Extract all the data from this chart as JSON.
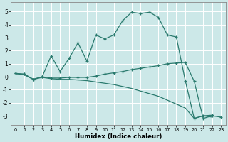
{
  "xlabel": "Humidex (Indice chaleur)",
  "background_color": "#cce8e8",
  "grid_color": "#ffffff",
  "line_color": "#2a7a6e",
  "xlim": [
    -0.5,
    23.5
  ],
  "ylim": [
    -3.7,
    5.7
  ],
  "yticks": [
    -3,
    -2,
    -1,
    0,
    1,
    2,
    3,
    4,
    5
  ],
  "xticks": [
    0,
    1,
    2,
    3,
    4,
    5,
    6,
    7,
    8,
    9,
    10,
    11,
    12,
    13,
    14,
    15,
    16,
    17,
    18,
    19,
    20,
    21,
    22,
    23
  ],
  "line2_x": [
    0,
    1,
    2,
    3,
    4,
    5,
    6,
    7,
    8,
    9,
    10,
    11,
    12,
    13,
    14,
    15,
    16,
    17,
    18,
    19,
    20,
    21,
    22
  ],
  "line2_y": [
    0.25,
    0.2,
    -0.2,
    0.0,
    1.6,
    0.4,
    1.4,
    2.6,
    1.2,
    3.2,
    2.9,
    3.2,
    4.3,
    4.95,
    4.85,
    4.95,
    4.55,
    3.2,
    3.05,
    -0.3,
    -3.2,
    -3.0,
    -2.95
  ],
  "line1_x": [
    0,
    1,
    2,
    3,
    4,
    5,
    6,
    7,
    8,
    9,
    10,
    11,
    12,
    13,
    14,
    15,
    16,
    17,
    18,
    19,
    20,
    21,
    22,
    23
  ],
  "line1_y": [
    0.25,
    0.2,
    -0.2,
    0.0,
    -0.1,
    -0.1,
    -0.05,
    -0.05,
    -0.05,
    0.05,
    0.2,
    0.3,
    0.4,
    0.55,
    0.65,
    0.75,
    0.85,
    1.0,
    1.05,
    1.1,
    -0.35,
    -3.2,
    -3.0,
    -3.1
  ],
  "line3_x": [
    0,
    1,
    2,
    3,
    4,
    5,
    6,
    7,
    8,
    9,
    10,
    11,
    12,
    13,
    14,
    15,
    16,
    17,
    18,
    19,
    20,
    21,
    22
  ],
  "line3_y": [
    0.25,
    0.15,
    -0.2,
    -0.05,
    -0.15,
    -0.2,
    -0.2,
    -0.25,
    -0.3,
    -0.4,
    -0.5,
    -0.6,
    -0.75,
    -0.9,
    -1.1,
    -1.3,
    -1.5,
    -1.8,
    -2.1,
    -2.4,
    -3.2,
    -3.0,
    -3.1
  ]
}
